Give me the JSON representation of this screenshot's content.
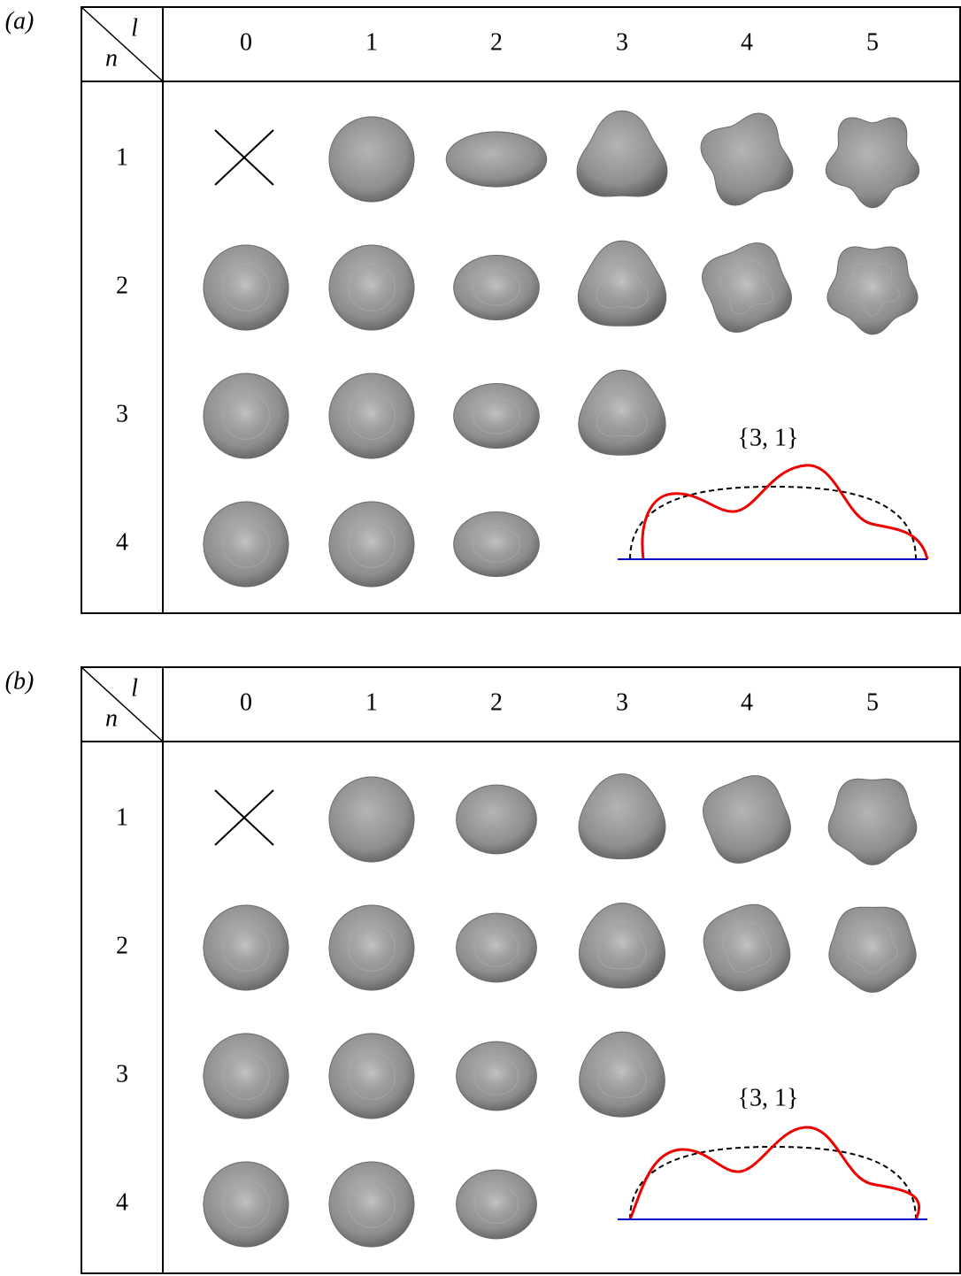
{
  "panels": [
    {
      "label": "(a)",
      "corner_top": "l",
      "corner_bottom": "n",
      "columns": [
        "0",
        "1",
        "2",
        "3",
        "4",
        "5"
      ],
      "rows": [
        "1",
        "2",
        "3",
        "4"
      ],
      "inset_label": "{3, 1}"
    },
    {
      "label": "(b)",
      "corner_top": "l",
      "corner_bottom": "n",
      "columns": [
        "0",
        "1",
        "2",
        "3",
        "4",
        "5"
      ],
      "rows": [
        "1",
        "2",
        "3",
        "4"
      ],
      "inset_label": "{3, 1}"
    }
  ]
}
